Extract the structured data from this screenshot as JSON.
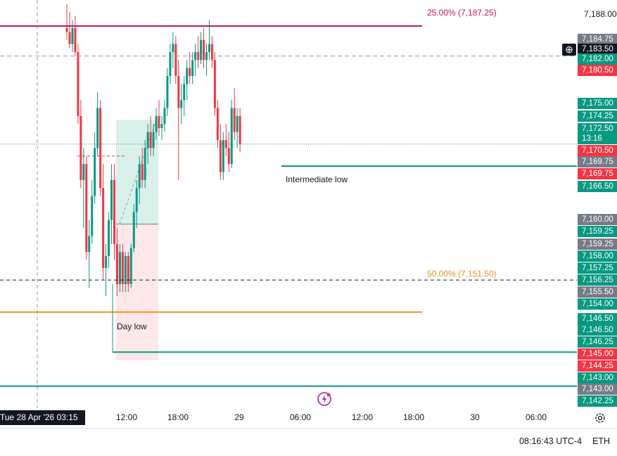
{
  "chart_data": {
    "type": "candlestick",
    "title": "",
    "xlabel": "",
    "ylabel": "",
    "ylim": [
      7139.5,
      7190.5
    ],
    "x_ticks": [
      "12:00",
      "18:00",
      "29",
      "06:00",
      "12:00",
      "18:00",
      "30",
      "06:00"
    ],
    "y_tick": "7,188.00",
    "cursor_date": "Tue 28 Apr '26   03:15",
    "candles": [
      [
        7187.0,
        7190.0,
        7185.5,
        7186.5
      ],
      [
        7186.5,
        7189.0,
        7184.5,
        7185.0
      ],
      [
        7185.0,
        7188.0,
        7184.0,
        7187.0
      ],
      [
        7187.0,
        7188.5,
        7183.5,
        7184.0
      ],
      [
        7184.0,
        7185.0,
        7175.0,
        7176.0
      ],
      [
        7176.0,
        7178.0,
        7167.0,
        7168.0
      ],
      [
        7168.0,
        7172.0,
        7162.0,
        7170.0
      ],
      [
        7170.0,
        7171.0,
        7158.0,
        7159.0
      ],
      [
        7159.0,
        7163.0,
        7154.5,
        7161.0
      ],
      [
        7161.0,
        7168.0,
        7160.0,
        7166.0
      ],
      [
        7166.0,
        7174.0,
        7165.0,
        7172.0
      ],
      [
        7172.0,
        7179.0,
        7171.0,
        7177.0
      ],
      [
        7177.0,
        7178.0,
        7166.0,
        7167.0
      ],
      [
        7167.0,
        7170.0,
        7155.5,
        7157.0
      ],
      [
        7157.0,
        7160.0,
        7153.5,
        7158.5
      ],
      [
        7158.5,
        7164.0,
        7157.0,
        7163.0
      ],
      [
        7163.0,
        7170.0,
        7160.0,
        7168.0
      ],
      [
        7168.0,
        7170.0,
        7158.0,
        7160.0
      ],
      [
        7160.0,
        7162.0,
        7153.5,
        7155.0
      ],
      [
        7155.0,
        7160.0,
        7154.0,
        7159.0
      ],
      [
        7159.0,
        7160.0,
        7154.0,
        7155.0
      ],
      [
        7155.0,
        7159.0,
        7154.0,
        7158.5
      ],
      [
        7158.5,
        7159.0,
        7154.0,
        7155.0
      ],
      [
        7155.0,
        7160.0,
        7154.5,
        7159.5
      ],
      [
        7159.5,
        7165.0,
        7159.0,
        7164.0
      ],
      [
        7164.0,
        7168.0,
        7162.0,
        7167.0
      ],
      [
        7167.0,
        7171.0,
        7165.0,
        7170.0
      ],
      [
        7170.0,
        7172.0,
        7167.0,
        7168.0
      ],
      [
        7168.0,
        7173.0,
        7167.0,
        7172.0
      ],
      [
        7172.0,
        7175.0,
        7170.0,
        7174.0
      ],
      [
        7174.0,
        7176.0,
        7171.0,
        7172.0
      ],
      [
        7172.0,
        7175.0,
        7171.0,
        7174.0
      ],
      [
        7174.0,
        7177.0,
        7173.0,
        7176.0
      ],
      [
        7176.0,
        7178.0,
        7173.5,
        7174.5
      ],
      [
        7174.5,
        7176.0,
        7173.0,
        7175.0
      ],
      [
        7175.0,
        7178.0,
        7174.0,
        7177.0
      ],
      [
        7177.0,
        7182.0,
        7176.0,
        7181.0
      ],
      [
        7181.0,
        7185.0,
        7180.0,
        7184.0
      ],
      [
        7184.0,
        7186.5,
        7182.0,
        7185.0
      ],
      [
        7185.0,
        7186.0,
        7180.0,
        7181.0
      ],
      [
        7181.0,
        7183.0,
        7168.0,
        7177.0
      ],
      [
        7177.0,
        7180.0,
        7175.0,
        7178.0
      ],
      [
        7178.0,
        7181.0,
        7176.0,
        7180.0
      ],
      [
        7180.0,
        7183.0,
        7178.0,
        7182.0
      ],
      [
        7182.0,
        7184.0,
        7180.0,
        7181.0
      ],
      [
        7181.0,
        7184.0,
        7180.0,
        7183.0
      ],
      [
        7183.0,
        7185.0,
        7181.0,
        7184.0
      ],
      [
        7184.0,
        7186.0,
        7182.0,
        7183.0
      ],
      [
        7183.0,
        7186.5,
        7182.5,
        7185.5
      ],
      [
        7185.5,
        7187.0,
        7182.0,
        7183.0
      ],
      [
        7183.0,
        7185.0,
        7181.0,
        7184.0
      ],
      [
        7184.0,
        7188.0,
        7183.0,
        7185.0
      ],
      [
        7185.0,
        7186.0,
        7182.0,
        7183.0
      ],
      [
        7183.0,
        7184.0,
        7176.0,
        7177.0
      ],
      [
        7177.0,
        7178.0,
        7172.0,
        7173.0
      ],
      [
        7173.0,
        7175.0,
        7168.0,
        7169.0
      ],
      [
        7169.0,
        7174.0,
        7168.0,
        7173.0
      ],
      [
        7173.0,
        7175.0,
        7171.0,
        7172.0
      ],
      [
        7172.0,
        7174.0,
        7169.0,
        7170.0
      ],
      [
        7170.0,
        7178.0,
        7169.5,
        7177.0
      ],
      [
        7177.0,
        7179.5,
        7173.0,
        7174.0
      ],
      [
        7174.0,
        7177.0,
        7172.0,
        7176.0
      ],
      [
        7176.0,
        7177.0,
        7171.5,
        7172.5
      ]
    ],
    "levels": [
      {
        "label": "25.00% (7,187.25)",
        "value": 7187.25,
        "color": "#c2185b"
      },
      {
        "label": "50.00% (7,151.50)",
        "value": 7151.5,
        "color": "#ef8f1f"
      }
    ],
    "annotations": [
      {
        "label": "Intermediate low",
        "value": 7169.75
      },
      {
        "label": "Day low",
        "value": 7146.5
      }
    ],
    "price_tags": [
      {
        "text": "7,184.75",
        "color": "#787b86"
      },
      {
        "text": "7,183.50",
        "color": "#131722"
      },
      {
        "text": "7,182.00",
        "color": "#089981"
      },
      {
        "text": "7,180.50",
        "color": "#f23645"
      },
      {
        "text": "7,175.00",
        "color": "#089981"
      },
      {
        "text": "7,174.25",
        "color": "#089981"
      },
      {
        "text": "7,172.50",
        "color": "#089981"
      },
      {
        "text": "13:16",
        "color": "#089981"
      },
      {
        "text": "7,170.50",
        "color": "#f23645"
      },
      {
        "text": "7,169.75",
        "color": "#787b86"
      },
      {
        "text": "7,169.75",
        "color": "#f23645"
      },
      {
        "text": "7,166.50",
        "color": "#089981"
      },
      {
        "text": "7,160.00",
        "color": "#787b86"
      },
      {
        "text": "7,159.25",
        "color": "#089981"
      },
      {
        "text": "7,159.25",
        "color": "#787b86"
      },
      {
        "text": "7,158.00",
        "color": "#089981"
      },
      {
        "text": "7,157.25",
        "color": "#089981"
      },
      {
        "text": "7,156.25",
        "color": "#089981"
      },
      {
        "text": "7,155.50",
        "color": "#787b86"
      },
      {
        "text": "7,154.00",
        "color": "#089981"
      },
      {
        "text": "7,146.50",
        "color": "#089981"
      },
      {
        "text": "7,146.50",
        "color": "#089981"
      },
      {
        "text": "7,146.25",
        "color": "#089981"
      },
      {
        "text": "7,145.00",
        "color": "#f23645"
      },
      {
        "text": "7,144.25",
        "color": "#f23645"
      },
      {
        "text": "7,143.00",
        "color": "#089981"
      },
      {
        "text": "7,143.00",
        "color": "#787b86"
      },
      {
        "text": "7,142.25",
        "color": "#089981"
      }
    ]
  },
  "status": {
    "clock": "08:16:43 UTC-4",
    "session": "ETH"
  },
  "icons": {
    "plus": "plus-icon",
    "settings": "settings-icon",
    "logo": "tradingview-event-icon"
  },
  "colors": {
    "up": "#089981",
    "down": "#f23645",
    "long_zone": "#d3ede7",
    "short_zone": "#fbe3e5"
  }
}
